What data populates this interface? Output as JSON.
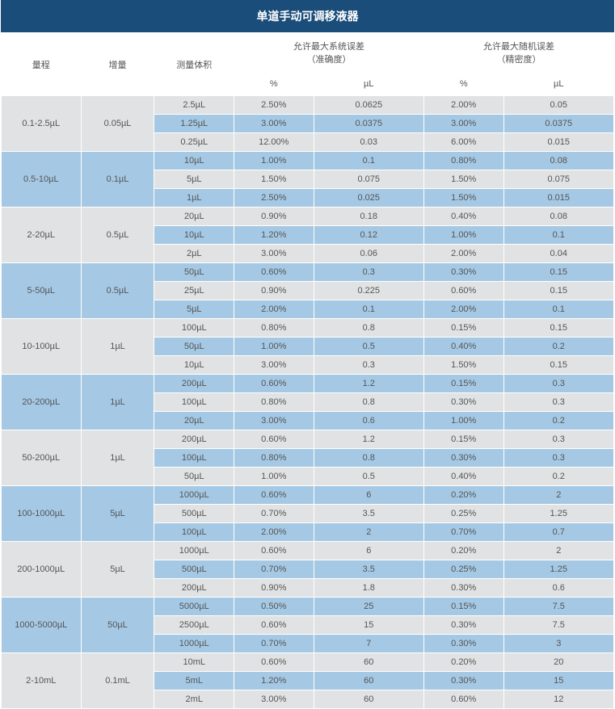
{
  "title": "单道手动可调移液器",
  "colors": {
    "header_bg": "#1a4d7a",
    "row_light": "#e1e2e3",
    "row_blue": "#a5c9e5",
    "border": "#ffffff",
    "text": "#555555"
  },
  "headers": {
    "range": "量程",
    "increment": "增量",
    "volume": "测量体积",
    "sys_error": "允许最大系统误差",
    "sys_error_sub": "（准确度）",
    "rand_error": "允许最大随机误差",
    "rand_error_sub": "（精密度）",
    "pct": "%",
    "ul": "µL"
  },
  "groups": [
    {
      "range": "0.1-2.5µL",
      "increment": "0.05µL",
      "row_base": "light",
      "rows": [
        {
          "volume": "2.5µL",
          "sys_pct": "2.50%",
          "sys_ul": "0.0625",
          "rand_pct": "2.00%",
          "rand_ul": "0.05"
        },
        {
          "volume": "1.25µL",
          "sys_pct": "3.00%",
          "sys_ul": "0.0375",
          "rand_pct": "3.00%",
          "rand_ul": "0.0375"
        },
        {
          "volume": "0.25µL",
          "sys_pct": "12.00%",
          "sys_ul": "0.03",
          "rand_pct": "6.00%",
          "rand_ul": "0.015"
        }
      ]
    },
    {
      "range": "0.5-10µL",
      "increment": "0.1µL",
      "row_base": "blue",
      "rows": [
        {
          "volume": "10µL",
          "sys_pct": "1.00%",
          "sys_ul": "0.1",
          "rand_pct": "0.80%",
          "rand_ul": "0.08"
        },
        {
          "volume": "5µL",
          "sys_pct": "1.50%",
          "sys_ul": "0.075",
          "rand_pct": "1.50%",
          "rand_ul": "0.075"
        },
        {
          "volume": "1µL",
          "sys_pct": "2.50%",
          "sys_ul": "0.025",
          "rand_pct": "1.50%",
          "rand_ul": "0.015"
        }
      ]
    },
    {
      "range": "2-20µL",
      "increment": "0.5µL",
      "row_base": "light",
      "rows": [
        {
          "volume": "20µL",
          "sys_pct": "0.90%",
          "sys_ul": "0.18",
          "rand_pct": "0.40%",
          "rand_ul": "0.08"
        },
        {
          "volume": "10µL",
          "sys_pct": "1.20%",
          "sys_ul": "0.12",
          "rand_pct": "1.00%",
          "rand_ul": "0.1"
        },
        {
          "volume": "2µL",
          "sys_pct": "3.00%",
          "sys_ul": "0.06",
          "rand_pct": "2.00%",
          "rand_ul": "0.04"
        }
      ]
    },
    {
      "range": "5-50µL",
      "increment": "0.5µL",
      "row_base": "blue",
      "rows": [
        {
          "volume": "50µL",
          "sys_pct": "0.60%",
          "sys_ul": "0.3",
          "rand_pct": "0.30%",
          "rand_ul": "0.15"
        },
        {
          "volume": "25µL",
          "sys_pct": "0.90%",
          "sys_ul": "0.225",
          "rand_pct": "0.60%",
          "rand_ul": "0.15"
        },
        {
          "volume": "5µL",
          "sys_pct": "2.00%",
          "sys_ul": "0.1",
          "rand_pct": "2.00%",
          "rand_ul": "0.1"
        }
      ]
    },
    {
      "range": "10-100µL",
      "increment": "1µL",
      "row_base": "light",
      "rows": [
        {
          "volume": "100µL",
          "sys_pct": "0.80%",
          "sys_ul": "0.8",
          "rand_pct": "0.15%",
          "rand_ul": "0.15"
        },
        {
          "volume": "50µL",
          "sys_pct": "1.00%",
          "sys_ul": "0.5",
          "rand_pct": "0.40%",
          "rand_ul": "0.2"
        },
        {
          "volume": "10µL",
          "sys_pct": "3.00%",
          "sys_ul": "0.3",
          "rand_pct": "1.50%",
          "rand_ul": "0.15"
        }
      ]
    },
    {
      "range": "20-200µL",
      "increment": "1µL",
      "row_base": "blue",
      "rows": [
        {
          "volume": "200µL",
          "sys_pct": "0.60%",
          "sys_ul": "1.2",
          "rand_pct": "0.15%",
          "rand_ul": "0.3"
        },
        {
          "volume": "100µL",
          "sys_pct": "0.80%",
          "sys_ul": "0.8",
          "rand_pct": "0.30%",
          "rand_ul": "0.3"
        },
        {
          "volume": "20µL",
          "sys_pct": "3.00%",
          "sys_ul": "0.6",
          "rand_pct": "1.00%",
          "rand_ul": "0.2"
        }
      ]
    },
    {
      "range": "50-200µL",
      "increment": "1µL",
      "row_base": "light",
      "rows": [
        {
          "volume": "200µL",
          "sys_pct": "0.60%",
          "sys_ul": "1.2",
          "rand_pct": "0.15%",
          "rand_ul": "0.3"
        },
        {
          "volume": "100µL",
          "sys_pct": "0.80%",
          "sys_ul": "0.8",
          "rand_pct": "0.30%",
          "rand_ul": "0.3"
        },
        {
          "volume": "50µL",
          "sys_pct": "1.00%",
          "sys_ul": "0.5",
          "rand_pct": "0.40%",
          "rand_ul": "0.2"
        }
      ]
    },
    {
      "range": "100-1000µL",
      "increment": "5µL",
      "row_base": "blue",
      "rows": [
        {
          "volume": "1000µL",
          "sys_pct": "0.60%",
          "sys_ul": "6",
          "rand_pct": "0.20%",
          "rand_ul": "2"
        },
        {
          "volume": "500µL",
          "sys_pct": "0.70%",
          "sys_ul": "3.5",
          "rand_pct": "0.25%",
          "rand_ul": "1.25"
        },
        {
          "volume": "100µL",
          "sys_pct": "2.00%",
          "sys_ul": "2",
          "rand_pct": "0.70%",
          "rand_ul": "0.7"
        }
      ]
    },
    {
      "range": "200-1000µL",
      "increment": "5µL",
      "row_base": "light",
      "rows": [
        {
          "volume": "1000µL",
          "sys_pct": "0.60%",
          "sys_ul": "6",
          "rand_pct": "0.20%",
          "rand_ul": "2"
        },
        {
          "volume": "500µL",
          "sys_pct": "0.70%",
          "sys_ul": "3.5",
          "rand_pct": "0.25%",
          "rand_ul": "1.25"
        },
        {
          "volume": "200µL",
          "sys_pct": "0.90%",
          "sys_ul": "1.8",
          "rand_pct": "0.30%",
          "rand_ul": "0.6"
        }
      ]
    },
    {
      "range": "1000-5000µL",
      "increment": "50µL",
      "row_base": "blue",
      "rows": [
        {
          "volume": "5000µL",
          "sys_pct": "0.50%",
          "sys_ul": "25",
          "rand_pct": "0.15%",
          "rand_ul": "7.5"
        },
        {
          "volume": "2500µL",
          "sys_pct": "0.60%",
          "sys_ul": "15",
          "rand_pct": "0.30%",
          "rand_ul": "7.5"
        },
        {
          "volume": "1000µL",
          "sys_pct": "0.70%",
          "sys_ul": "7",
          "rand_pct": "0.30%",
          "rand_ul": "3"
        }
      ]
    },
    {
      "range": "2-10mL",
      "increment": "0.1mL",
      "row_base": "light",
      "rows": [
        {
          "volume": "10mL",
          "sys_pct": "0.60%",
          "sys_ul": "60",
          "rand_pct": "0.20%",
          "rand_ul": "20"
        },
        {
          "volume": "5mL",
          "sys_pct": "1.20%",
          "sys_ul": "60",
          "rand_pct": "0.30%",
          "rand_ul": "15"
        },
        {
          "volume": "2mL",
          "sys_pct": "3.00%",
          "sys_ul": "60",
          "rand_pct": "0.60%",
          "rand_ul": "12"
        }
      ]
    }
  ]
}
